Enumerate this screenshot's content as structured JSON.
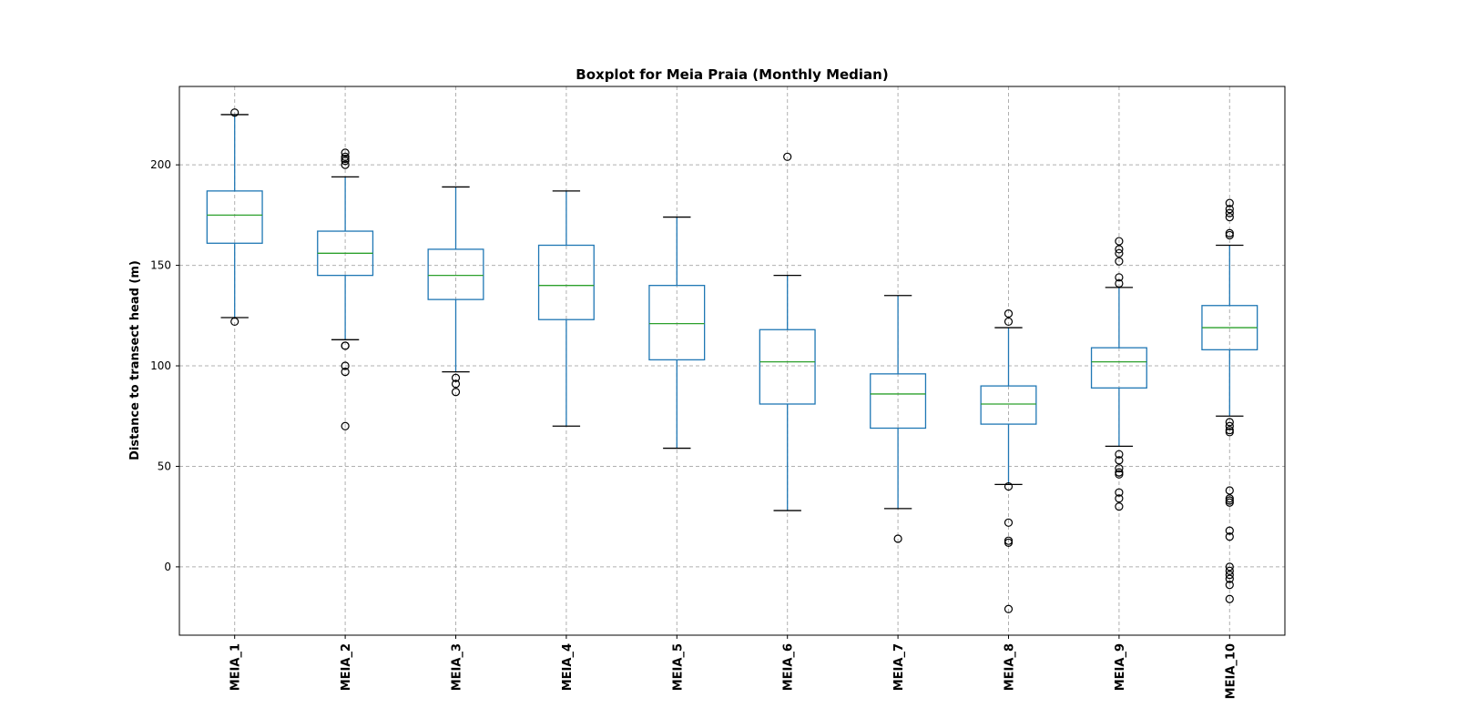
{
  "chart_data": {
    "type": "boxplot",
    "title": "Boxplot for Meia Praia (Monthly Median)",
    "xlabel": "",
    "ylabel": "Distance to transect head (m)",
    "ylim": [
      -34,
      239
    ],
    "yticks": [
      0,
      50,
      100,
      150,
      200
    ],
    "grid": true,
    "colors": {
      "box": "#1f77b4",
      "median": "#2ca02c",
      "cap": "#000000",
      "grid": "#b0b0b0"
    },
    "categories": [
      "MEIA_1",
      "MEIA_2",
      "MEIA_3",
      "MEIA_4",
      "MEIA_5",
      "MEIA_6",
      "MEIA_7",
      "MEIA_8",
      "MEIA_9",
      "MEIA_10"
    ],
    "boxes": [
      {
        "name": "MEIA_1",
        "whislo": 124,
        "q1": 161,
        "med": 175,
        "q3": 187,
        "whishi": 225,
        "fliers": [
          226,
          122
        ]
      },
      {
        "name": "MEIA_2",
        "whislo": 113,
        "q1": 145,
        "med": 156,
        "q3": 167,
        "whishi": 194,
        "fliers": [
          206,
          204,
          203,
          202,
          200,
          110,
          110,
          100,
          97,
          70
        ]
      },
      {
        "name": "MEIA_3",
        "whislo": 97,
        "q1": 133,
        "med": 145,
        "q3": 158,
        "whishi": 189,
        "fliers": [
          94,
          91,
          87
        ]
      },
      {
        "name": "MEIA_4",
        "whislo": 70,
        "q1": 123,
        "med": 140,
        "q3": 160,
        "whishi": 187,
        "fliers": []
      },
      {
        "name": "MEIA_5",
        "whislo": 59,
        "q1": 103,
        "med": 121,
        "q3": 140,
        "whishi": 174,
        "fliers": []
      },
      {
        "name": "MEIA_6",
        "whislo": 28,
        "q1": 81,
        "med": 102,
        "q3": 118,
        "whishi": 145,
        "fliers": [
          204
        ]
      },
      {
        "name": "MEIA_7",
        "whislo": 29,
        "q1": 69,
        "med": 86,
        "q3": 96,
        "whishi": 135,
        "fliers": [
          14
        ]
      },
      {
        "name": "MEIA_8",
        "whislo": 41,
        "q1": 71,
        "med": 81,
        "q3": 90,
        "whishi": 119,
        "fliers": [
          126,
          122,
          40,
          22,
          13,
          12,
          -21
        ]
      },
      {
        "name": "MEIA_9",
        "whislo": 60,
        "q1": 89,
        "med": 102,
        "q3": 109,
        "whishi": 139,
        "fliers": [
          162,
          158,
          156,
          152,
          144,
          141,
          56,
          53,
          49,
          47,
          46,
          37,
          34,
          30
        ]
      },
      {
        "name": "MEIA_10",
        "whislo": 75,
        "q1": 108,
        "med": 119,
        "q3": 130,
        "whishi": 160,
        "fliers": [
          181,
          178,
          176,
          174,
          166,
          165,
          72,
          70,
          68,
          67,
          38,
          34,
          33,
          32,
          18,
          15,
          0,
          -2,
          -4,
          -6,
          -9,
          -16
        ]
      }
    ]
  }
}
